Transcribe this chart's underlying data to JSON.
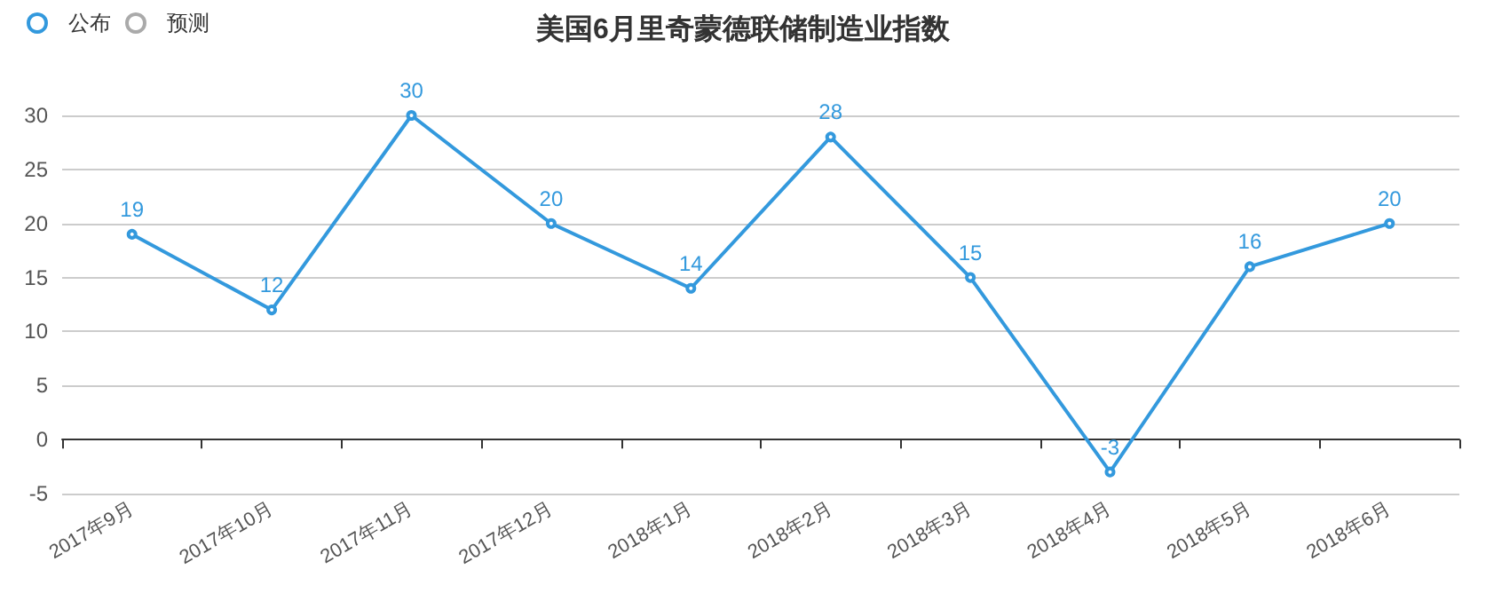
{
  "chart_data": {
    "type": "line",
    "title": "美国6月里奇蒙德联储制造业指数",
    "categories": [
      "2017年9月",
      "2017年10月",
      "2017年11月",
      "2017年12月",
      "2018年1月",
      "2018年2月",
      "2018年3月",
      "2018年4月",
      "2018年5月",
      "2018年6月"
    ],
    "series": [
      {
        "name": "公布",
        "color": "#3399dd",
        "values": [
          19,
          12,
          30,
          20,
          14,
          28,
          15,
          -3,
          16,
          20
        ]
      },
      {
        "name": "预测",
        "color": "#aaaaaa",
        "values": [
          null,
          null,
          null,
          null,
          null,
          null,
          null,
          null,
          null,
          null
        ]
      }
    ],
    "ylim": [
      -5,
      30
    ],
    "yticks": [
      -5,
      0,
      5,
      10,
      15,
      20,
      25,
      30
    ],
    "grid": "y",
    "legend": "top left",
    "marker": "circle",
    "data_labels": true
  }
}
